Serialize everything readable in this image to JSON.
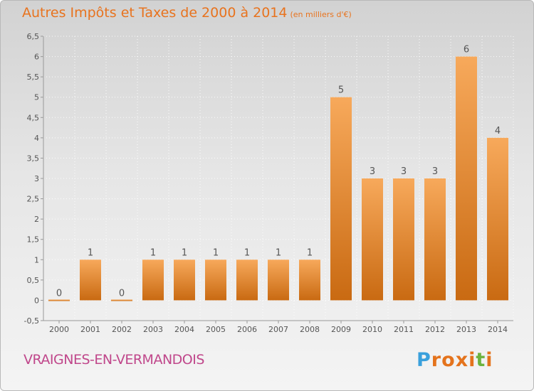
{
  "header": {
    "title": "Autres Impôts et Taxes de 2000 à 2014",
    "unit": "(en milliers d'€)"
  },
  "footer": {
    "commune": "VRAIGNES-EN-VERMANDOIS",
    "logo_text": "Proxiti"
  },
  "colors": {
    "title": "#e8731e",
    "commune": "#c0478b",
    "bar_light": "#f7a95b",
    "bar_dark": "#c96a12",
    "axis": "#999999",
    "logo": [
      "#3aa0dc",
      "#e4731c",
      "#e4731c",
      "#e4731c",
      "#e4731c",
      "#6cb33f",
      "#e4731c"
    ]
  },
  "chart_data": {
    "type": "bar",
    "categories": [
      "2000",
      "2001",
      "2002",
      "2003",
      "2004",
      "2005",
      "2006",
      "2007",
      "2008",
      "2009",
      "2010",
      "2011",
      "2012",
      "2013",
      "2014"
    ],
    "values": [
      0,
      1,
      0,
      1,
      1,
      1,
      1,
      1,
      1,
      5,
      3,
      3,
      3,
      6,
      4
    ],
    "ylim": [
      -0.5,
      6.5
    ],
    "yticks": [
      "-0,5",
      "0",
      "0,5",
      "1",
      "1,5",
      "2",
      "2,5",
      "3",
      "3,5",
      "4",
      "4,5",
      "5",
      "5,5",
      "6",
      "6,5"
    ],
    "grid": true,
    "legend": "none"
  }
}
